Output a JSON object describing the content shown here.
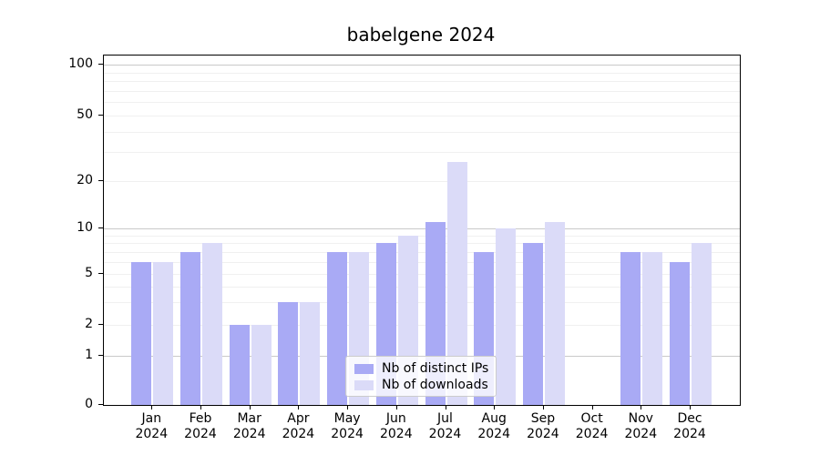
{
  "title": "babelgene 2024",
  "chart_data": {
    "type": "bar",
    "title": "babelgene 2024",
    "categories": [
      "Jan 2024",
      "Feb 2024",
      "Mar 2024",
      "Apr 2024",
      "May 2024",
      "Jun 2024",
      "Jul 2024",
      "Aug 2024",
      "Sep 2024",
      "Oct 2024",
      "Nov 2024",
      "Dec 2024"
    ],
    "series": [
      {
        "name": "Nb of distinct IPs",
        "color": "#a9aaf5",
        "values": [
          6,
          7,
          2,
          3,
          7,
          8,
          11,
          7,
          8,
          0,
          7,
          6
        ]
      },
      {
        "name": "Nb of downloads",
        "color": "#dbdbf8",
        "values": [
          6,
          8,
          2,
          3,
          7,
          9,
          26,
          10,
          11,
          0,
          7,
          8
        ]
      }
    ],
    "y_axis": {
      "scale": "symlog",
      "tick_values": [
        0,
        1,
        2,
        5,
        10,
        20,
        50,
        100
      ],
      "major_gridlines": [
        1,
        10,
        100
      ],
      "minor_gridlines": [
        2,
        3,
        4,
        5,
        6,
        7,
        8,
        9,
        20,
        30,
        40,
        50,
        60,
        70,
        80,
        90
      ]
    },
    "x_axis": {
      "tick_label_line2": "2024"
    },
    "legend": {
      "position": "lower center",
      "entries": [
        "Nb of distinct IPs",
        "Nb of downloads"
      ]
    },
    "grid": true,
    "colors": {
      "background": "#ffffff",
      "spine": "#000000",
      "text": "#000000",
      "major_grid": "#c9c9c9",
      "minor_grid": "#f0f0f0",
      "series_ips": "#a9aaf5",
      "series_downloads": "#dbdbf8"
    }
  }
}
